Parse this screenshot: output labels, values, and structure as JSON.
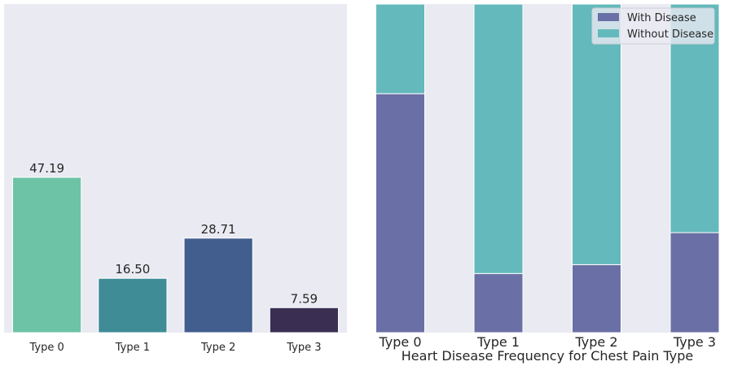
{
  "chart_data": [
    {
      "type": "bar",
      "categories": [
        "Type 0",
        "Type 1",
        "Type 2",
        "Type 3"
      ],
      "values": [
        47.19,
        16.5,
        28.71,
        7.59
      ],
      "data_labels": [
        "47.19",
        "16.50",
        "28.71",
        "7.59"
      ],
      "colors": [
        "#6cc3a6",
        "#3f8c97",
        "#425e8e",
        "#3a2f52"
      ],
      "ylim": [
        0,
        47.19
      ],
      "grid": false
    },
    {
      "type": "bar",
      "stacked": true,
      "categories": [
        "Type 0",
        "Type 1",
        "Type 2",
        "Type 3"
      ],
      "xlabel": "Heart Disease Frequency for Chest Pain Type",
      "series": [
        {
          "name": "With Disease",
          "values": [
            104,
            9,
            18,
            7
          ],
          "color": "#6a70a5"
        },
        {
          "name": "Without Disease",
          "values": [
            39,
            41,
            69,
            16
          ],
          "color": "#64b9bc"
        }
      ],
      "normalized": true,
      "legend": "top-right",
      "grid": false
    }
  ]
}
